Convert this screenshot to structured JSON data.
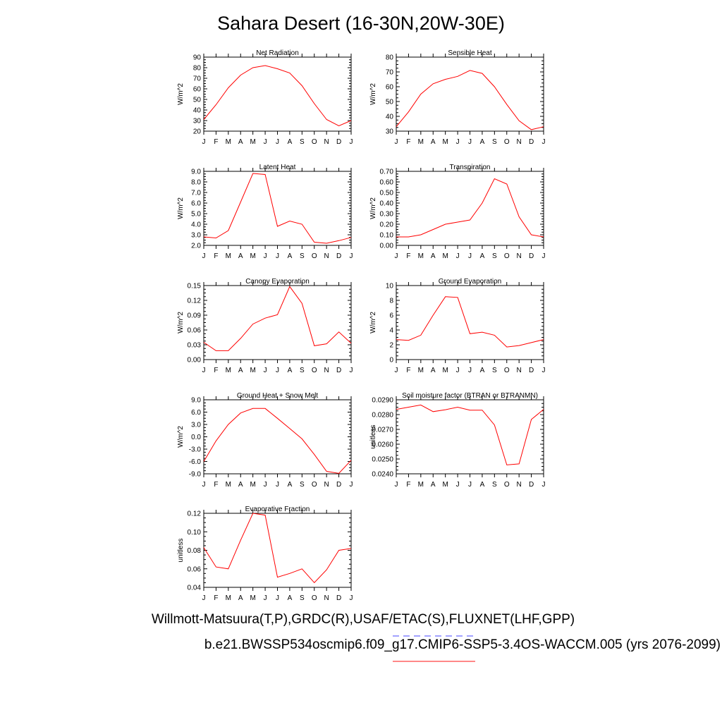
{
  "title": "Sahara Desert (16-30N,20W-30E)",
  "footer": {
    "line1": "Willmott-Matsuura(T,P),GRDC(R),USAF/ETAC(S),FLUXNET(LHF,GPP)",
    "line2": "b.e21.BWSSP534oscmip6.f09_g17.CMIP6-SSP5-3.4OS-WACCM.005 (yrs 2076-2099)"
  },
  "colors": {
    "model_line": "#ff0000",
    "obs_dash": "#6b6bff",
    "model_legend": "#ff4040"
  },
  "chart_data": [
    {
      "type": "line",
      "title": "Net Radiation",
      "ylabel": "W/m^2",
      "x": [
        "J",
        "F",
        "M",
        "A",
        "M",
        "J",
        "J",
        "A",
        "S",
        "O",
        "N",
        "D",
        "J"
      ],
      "ylim": [
        20,
        90
      ],
      "yticks": [
        "20",
        "30",
        "40",
        "50",
        "60",
        "70",
        "80",
        "90"
      ],
      "series": [
        {
          "values": [
            31,
            45,
            61,
            73,
            80,
            82,
            79,
            75,
            63,
            46,
            31,
            25,
            30
          ]
        }
      ]
    },
    {
      "type": "line",
      "title": "Sensible Heat",
      "ylabel": "W/m^2",
      "x": [
        "J",
        "F",
        "M",
        "A",
        "M",
        "J",
        "J",
        "A",
        "S",
        "O",
        "N",
        "D",
        "J"
      ],
      "ylim": [
        30,
        80
      ],
      "yticks": [
        "30",
        "40",
        "50",
        "60",
        "70",
        "80"
      ],
      "series": [
        {
          "values": [
            33,
            43,
            55,
            62,
            65,
            67,
            71,
            69,
            60,
            48,
            37,
            31,
            33
          ]
        }
      ]
    },
    {
      "type": "line",
      "title": "Latent Heat",
      "ylabel": "W/m^2",
      "x": [
        "J",
        "F",
        "M",
        "A",
        "M",
        "J",
        "J",
        "A",
        "S",
        "O",
        "N",
        "D",
        "J"
      ],
      "ylim": [
        2.0,
        9.0
      ],
      "yticks": [
        "2.0",
        "3.0",
        "4.0",
        "5.0",
        "6.0",
        "7.0",
        "8.0",
        "9.0"
      ],
      "series": [
        {
          "values": [
            2.8,
            2.7,
            3.4,
            6.1,
            8.8,
            8.7,
            3.8,
            4.3,
            4.0,
            2.3,
            2.2,
            2.45,
            2.75
          ]
        }
      ]
    },
    {
      "type": "line",
      "title": "Transpiration",
      "ylabel": "W/m^2",
      "x": [
        "J",
        "F",
        "M",
        "A",
        "M",
        "J",
        "J",
        "A",
        "S",
        "O",
        "N",
        "D",
        "J"
      ],
      "ylim": [
        0.0,
        0.7
      ],
      "yticks": [
        "0.00",
        "0.10",
        "0.20",
        "0.30",
        "0.40",
        "0.50",
        "0.60",
        "0.70"
      ],
      "series": [
        {
          "values": [
            0.08,
            0.08,
            0.1,
            0.15,
            0.2,
            0.22,
            0.24,
            0.4,
            0.63,
            0.58,
            0.27,
            0.1,
            0.08
          ]
        }
      ]
    },
    {
      "type": "line",
      "title": "Canopy Evaporation",
      "ylabel": "W/m^2",
      "x": [
        "J",
        "F",
        "M",
        "A",
        "M",
        "J",
        "J",
        "A",
        "S",
        "O",
        "N",
        "D",
        "J"
      ],
      "ylim": [
        0.0,
        0.15
      ],
      "yticks": [
        "0.00",
        "0.03",
        "0.06",
        "0.09",
        "0.12",
        "0.15"
      ],
      "series": [
        {
          "values": [
            0.035,
            0.018,
            0.018,
            0.043,
            0.072,
            0.084,
            0.091,
            0.148,
            0.114,
            0.028,
            0.032,
            0.056,
            0.033
          ]
        }
      ]
    },
    {
      "type": "line",
      "title": "Ground Evaporation",
      "ylabel": "W/m^2",
      "x": [
        "J",
        "F",
        "M",
        "A",
        "M",
        "J",
        "J",
        "A",
        "S",
        "O",
        "N",
        "D",
        "J"
      ],
      "ylim": [
        0,
        10
      ],
      "yticks": [
        "0",
        "2",
        "4",
        "6",
        "8",
        "10"
      ],
      "series": [
        {
          "values": [
            2.7,
            2.6,
            3.3,
            6.0,
            8.5,
            8.4,
            3.5,
            3.7,
            3.3,
            1.7,
            1.9,
            2.3,
            2.7
          ]
        }
      ]
    },
    {
      "type": "line",
      "title": "Ground Heat + Snow Melt",
      "ylabel": "W/m^2",
      "x": [
        "J",
        "F",
        "M",
        "A",
        "M",
        "J",
        "J",
        "A",
        "S",
        "O",
        "N",
        "D",
        "J"
      ],
      "ylim": [
        -9.0,
        9.0
      ],
      "yticks": [
        "-9.0",
        "-6.0",
        "-3.0",
        "0.0",
        "3.0",
        "6.0",
        "9.0"
      ],
      "series": [
        {
          "values": [
            -6.0,
            -1.0,
            3.0,
            5.8,
            6.9,
            6.9,
            4.5,
            2.0,
            -0.5,
            -4.3,
            -8.4,
            -8.9,
            -5.7
          ]
        }
      ]
    },
    {
      "type": "line",
      "title": "Soil moisture factor (BTRAN or BTRANMN)",
      "ylabel": "unitless",
      "x": [
        "J",
        "F",
        "M",
        "A",
        "M",
        "J",
        "J",
        "A",
        "S",
        "O",
        "N",
        "D",
        "J"
      ],
      "ylim": [
        0.024,
        0.029
      ],
      "yticks": [
        "0.0240",
        "0.0250",
        "0.0260",
        "0.0270",
        "0.0280",
        "0.0290"
      ],
      "series": [
        {
          "values": [
            0.02835,
            0.0285,
            0.02865,
            0.0282,
            0.02833,
            0.0285,
            0.0283,
            0.0283,
            0.0273,
            0.0246,
            0.02467,
            0.02767,
            0.02835
          ]
        }
      ]
    },
    {
      "type": "line",
      "title": "Evaporative Fraction",
      "ylabel": "unitless",
      "x": [
        "J",
        "F",
        "M",
        "A",
        "M",
        "J",
        "J",
        "A",
        "S",
        "O",
        "N",
        "D",
        "J"
      ],
      "ylim": [
        0.04,
        0.12
      ],
      "yticks": [
        "0.04",
        "0.06",
        "0.08",
        "0.10",
        "0.12"
      ],
      "series": [
        {
          "values": [
            0.083,
            0.062,
            0.06,
            0.091,
            0.12,
            0.118,
            0.051,
            0.055,
            0.06,
            0.045,
            0.059,
            0.08,
            0.082
          ]
        }
      ]
    }
  ]
}
